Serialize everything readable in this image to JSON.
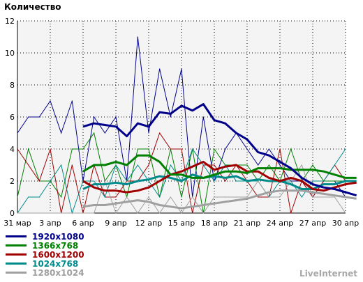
{
  "chart_data": {
    "type": "line",
    "ylabel": "Количество",
    "ylim": [
      0,
      12
    ],
    "yticks": [
      0,
      2,
      4,
      6,
      8,
      10,
      12
    ],
    "xlim": [
      0,
      30
    ],
    "xticks": [
      {
        "pos": 0,
        "label": "31 мар"
      },
      {
        "pos": 3,
        "label": "3 апр"
      },
      {
        "pos": 6,
        "label": "6 апр"
      },
      {
        "pos": 9,
        "label": "9 апр"
      },
      {
        "pos": 12,
        "label": "12 апр"
      },
      {
        "pos": 15,
        "label": "15 апр"
      },
      {
        "pos": 18,
        "label": "18 апр"
      },
      {
        "pos": 21,
        "label": "21 апр"
      },
      {
        "pos": 24,
        "label": "24 апр"
      },
      {
        "pos": 27,
        "label": "27 апр"
      },
      {
        "pos": 30,
        "label": "30 апр"
      }
    ],
    "grid": true,
    "series": [
      {
        "name": "1920x1080",
        "color": "#00008b",
        "daily": [
          5,
          6,
          6,
          7,
          5,
          7,
          2,
          6,
          5,
          6,
          2,
          11,
          5,
          9,
          6,
          9,
          1,
          6,
          2,
          4,
          5,
          4,
          3,
          4,
          3,
          2,
          2,
          1,
          2,
          2,
          1
        ],
        "avg_start": 6,
        "average": [
          5.4,
          5.6,
          5.5,
          5.4,
          4.8,
          5.6,
          5.4,
          6.3,
          6.2,
          6.7,
          6.4,
          6.8,
          5.8,
          5.6,
          5.0,
          4.6,
          3.8,
          3.6,
          3.2,
          2.8,
          2.2,
          1.8,
          1.6,
          1.5,
          1.3,
          1.1
        ]
      },
      {
        "name": "1366x768",
        "color": "#008000",
        "daily": [
          1,
          4,
          2,
          2,
          1,
          4,
          4,
          5,
          2,
          3,
          1,
          4,
          4,
          1,
          4,
          1,
          4,
          0,
          4,
          3,
          3,
          3,
          2,
          3,
          2,
          4,
          2,
          3,
          2,
          2,
          2
        ],
        "avg_start": 6,
        "average": [
          2.6,
          3.0,
          3.0,
          3.2,
          3.0,
          3.6,
          3.6,
          3.2,
          2.4,
          2.4,
          2.2,
          2.2,
          2.4,
          2.6,
          2.6,
          2.5,
          2.8,
          2.8,
          2.8,
          2.7,
          2.7,
          2.7,
          2.6,
          2.4,
          2.2,
          2.2
        ]
      },
      {
        "name": "1600x1200",
        "color": "#a00000",
        "daily": [
          4,
          3,
          2,
          4,
          0,
          3,
          0,
          3,
          1,
          1,
          2,
          2,
          3,
          5,
          4,
          4,
          0,
          3,
          3,
          2,
          3,
          2,
          1,
          1,
          4,
          0,
          2,
          1,
          2,
          3,
          2
        ],
        "avg_start": 6,
        "average": [
          2.0,
          1.6,
          1.4,
          1.4,
          1.3,
          1.4,
          1.6,
          2.0,
          2.4,
          2.6,
          2.9,
          3.2,
          2.7,
          2.9,
          3.0,
          2.6,
          2.6,
          2.2,
          2.0,
          2.2,
          2.0,
          1.5,
          1.4,
          1.6,
          1.8,
          1.9
        ]
      },
      {
        "name": "1024x768",
        "color": "#008b8b",
        "daily": [
          0,
          1,
          1,
          2,
          3,
          0,
          2,
          2,
          1,
          3,
          2,
          3,
          2,
          1,
          3,
          2,
          4,
          3,
          2,
          3,
          2,
          2,
          2,
          1,
          2,
          2,
          1,
          2,
          2,
          3,
          4
        ],
        "avg_start": 6,
        "average": [
          1.5,
          1.8,
          1.8,
          1.9,
          1.8,
          2.0,
          2.1,
          2.3,
          2.2,
          2.0,
          2.4,
          2.2,
          2.3,
          2.2,
          2.3,
          2.0,
          2.1,
          2.0,
          2.0,
          1.8,
          1.5,
          1.5,
          1.8,
          1.8,
          2.0,
          2.0
        ]
      },
      {
        "name": "1280x1024",
        "color": "#a0a0a0",
        "daily": [
          0,
          0,
          0,
          0,
          0,
          0,
          0,
          0,
          2,
          0,
          1,
          0,
          1,
          0,
          1,
          0,
          1,
          0,
          1,
          1,
          1,
          1,
          2,
          1,
          1,
          2,
          3,
          1,
          1,
          1,
          0
        ],
        "avg_start": 6,
        "average": [
          0.4,
          0.5,
          0.5,
          0.6,
          0.7,
          0.8,
          0.7,
          0.5,
          0.4,
          0.3,
          0.4,
          0.5,
          0.6,
          0.7,
          0.8,
          0.9,
          1.1,
          1.3,
          1.4,
          1.4,
          1.4,
          1.3,
          1.2,
          1.1,
          1.0,
          0.9
        ]
      }
    ]
  },
  "brand": "LiveInternet"
}
